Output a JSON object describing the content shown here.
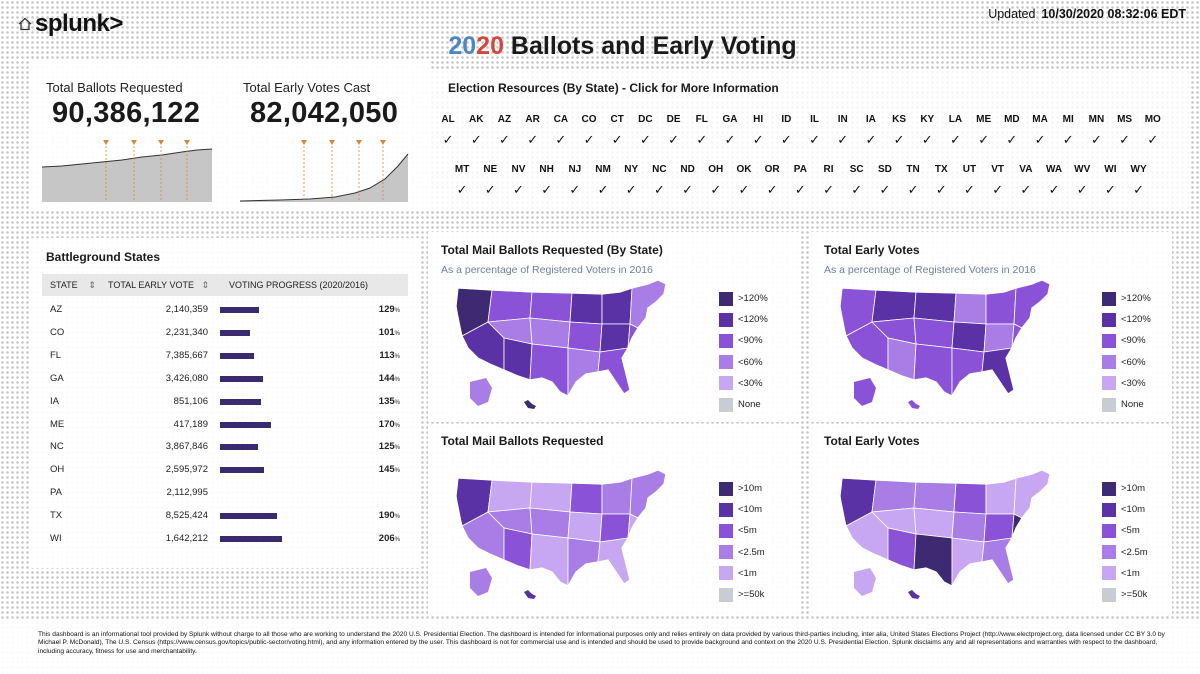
{
  "app": {
    "logo": "splunk>"
  },
  "header": {
    "title_year_1": "20",
    "title_year_2": "20",
    "title_rest": " Ballots and Early Voting",
    "updated_label": "Updated",
    "updated_time": "10/30/2020 08:32:06 EDT"
  },
  "kpis": {
    "requested_label": "Total Ballots Requested",
    "requested_value": "90,386,122",
    "cast_label": "Total Early Votes Cast",
    "cast_value": "82,042,050"
  },
  "resources": {
    "title": "Election Resources (By State) - Click for More Information",
    "check": "✓",
    "row1": [
      "AL",
      "AK",
      "AZ",
      "AR",
      "CA",
      "CO",
      "CT",
      "DC",
      "DE",
      "FL",
      "GA",
      "HI",
      "ID",
      "IL",
      "IN",
      "IA",
      "KS",
      "KY",
      "LA",
      "ME",
      "MD",
      "MA",
      "MI",
      "MN",
      "MS",
      "MO"
    ],
    "row2": [
      "MT",
      "NE",
      "NV",
      "NH",
      "NJ",
      "NM",
      "NY",
      "NC",
      "ND",
      "OH",
      "OK",
      "OR",
      "PA",
      "RI",
      "SC",
      "SD",
      "TN",
      "TX",
      "UT",
      "VT",
      "VA",
      "WA",
      "WV",
      "WI",
      "WY"
    ]
  },
  "battleground": {
    "title": "Battleground States",
    "col_state": "STATE",
    "col_total": "TOTAL EARLY VOTE",
    "col_progress": "VOTING PROGRESS (2020/2016)",
    "sort_icon": "⇕",
    "pct_suffix": "%",
    "rows": [
      {
        "state": "AZ",
        "total": "2,140,359",
        "pct": "129",
        "bar": 0.129
      },
      {
        "state": "CO",
        "total": "2,231,340",
        "pct": "101",
        "bar": 0.101
      },
      {
        "state": "FL",
        "total": "7,385,667",
        "pct": "113",
        "bar": 0.113
      },
      {
        "state": "GA",
        "total": "3,426,080",
        "pct": "144",
        "bar": 0.144
      },
      {
        "state": "IA",
        "total": "851,106",
        "pct": "135",
        "bar": 0.135
      },
      {
        "state": "ME",
        "total": "417,189",
        "pct": "170",
        "bar": 0.17
      },
      {
        "state": "NC",
        "total": "3,867,846",
        "pct": "125",
        "bar": 0.125
      },
      {
        "state": "OH",
        "total": "2,595,972",
        "pct": "145",
        "bar": 0.145
      },
      {
        "state": "PA",
        "total": "2,112,995",
        "pct": "",
        "bar": 0
      },
      {
        "state": "TX",
        "total": "8,525,424",
        "pct": "190",
        "bar": 0.19
      },
      {
        "state": "WI",
        "total": "1,642,212",
        "pct": "206",
        "bar": 0.206
      }
    ]
  },
  "maps": {
    "pct_subtitle": "As a percentage of Registered Voters in 2016",
    "mail_pct_title": "Total Mail Ballots Requested (By State)",
    "early_pct_title": "Total Early Votes",
    "mail_abs_title": "Total Mail Ballots Requested",
    "early_abs_title": "Total Early Votes",
    "legend_pct": [
      ">120%",
      "<120%",
      "<90%",
      "<60%",
      "<30%",
      "None"
    ],
    "legend_abs": [
      ">10m",
      "<10m",
      "<5m",
      "<2.5m",
      "<1m",
      ">=50k"
    ],
    "colors": [
      "#3d2a72",
      "#5b31a6",
      "#8a52d6",
      "#a97de6",
      "#c8a7f2",
      "#c9ccd3"
    ]
  },
  "footer": {
    "text": "This dashboard is an informational tool provided by Splunk without charge to all those who are working to understand the 2020 U.S. Presidential Election.  The dashboard is intended for informational purposes only and relies entirely on data provided by various third-parties including, inter alia, United States Elections Project (http://www.electproject.org, data licensed under CC BY 3.0 by Michael P. McDonald), The U.S. Census (https://www.census.gov/topics/public-sector/voting.html), and any information entered by the user. This dashboard is not for commercial use and is intended and should be used to provide background and context on the 2020 U.S. Presidential Election.  Splunk disclaims any and all representations and warranties with respect to the dashboard, including accuracy, fitness for use and merchantability."
  }
}
